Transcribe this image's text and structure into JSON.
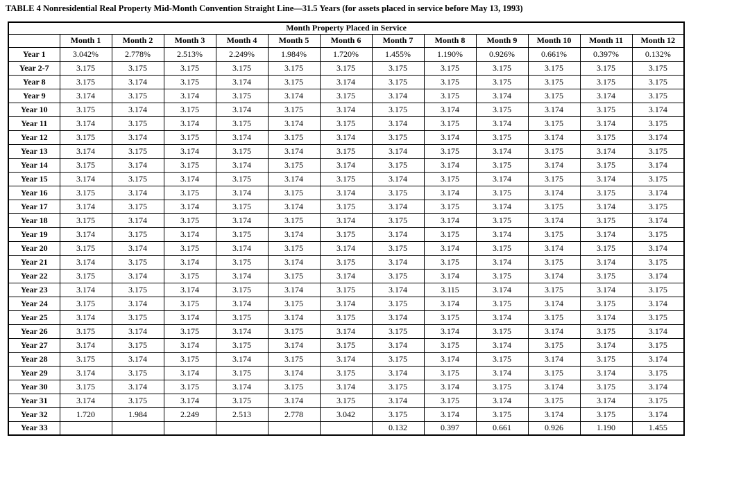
{
  "title": "TABLE 4 Nonresidential Real Property Mid-Month Convention Straight Line—31.5 Years (for assets placed in service before May 13, 1993)",
  "table": {
    "spanning_header": "Month Property Placed in Service",
    "column_headers": [
      "",
      "Month 1",
      "Month 2",
      "Month 3",
      "Month 4",
      "Month 5",
      "Month 6",
      "Month 7",
      "Month 8",
      "Month 9",
      "Month 10",
      "Month 11",
      "Month 12"
    ],
    "rows": [
      {
        "label": "Year 1",
        "values": [
          "3.042%",
          "2.778%",
          "2.513%",
          "2.249%",
          "1.984%",
          "1.720%",
          "1.455%",
          "1.190%",
          "0.926%",
          "0.661%",
          "0.397%",
          "0.132%"
        ]
      },
      {
        "label": "Year 2-7",
        "values": [
          "3.175",
          "3.175",
          "3.175",
          "3.175",
          "3.175",
          "3.175",
          "3.175",
          "3.175",
          "3.175",
          "3.175",
          "3.175",
          "3.175"
        ]
      },
      {
        "label": "Year 8",
        "values": [
          "3.175",
          "3.174",
          "3.175",
          "3.174",
          "3.175",
          "3.174",
          "3.175",
          "3.175",
          "3.175",
          "3.175",
          "3.175",
          "3.175"
        ]
      },
      {
        "label": "Year 9",
        "values": [
          "3.174",
          "3.175",
          "3.174",
          "3.175",
          "3.174",
          "3.175",
          "3.174",
          "3.175",
          "3.174",
          "3.175",
          "3.174",
          "3.175"
        ]
      },
      {
        "label": "Year 10",
        "values": [
          "3.175",
          "3.174",
          "3.175",
          "3.174",
          "3.175",
          "3.174",
          "3.175",
          "3.174",
          "3.175",
          "3.174",
          "3.175",
          "3.174"
        ]
      },
      {
        "label": "Year 11",
        "values": [
          "3.174",
          "3.175",
          "3.174",
          "3.175",
          "3.174",
          "3.175",
          "3.174",
          "3.175",
          "3.174",
          "3.175",
          "3.174",
          "3.175"
        ]
      },
      {
        "label": "Year 12",
        "values": [
          "3.175",
          "3.174",
          "3.175",
          "3.174",
          "3.175",
          "3.174",
          "3.175",
          "3.174",
          "3.175",
          "3.174",
          "3.175",
          "3.174"
        ]
      },
      {
        "label": "Year 13",
        "values": [
          "3.174",
          "3.175",
          "3.174",
          "3.175",
          "3.174",
          "3.175",
          "3.174",
          "3.175",
          "3.174",
          "3.175",
          "3.174",
          "3.175"
        ]
      },
      {
        "label": "Year 14",
        "values": [
          "3.175",
          "3.174",
          "3.175",
          "3.174",
          "3.175",
          "3.174",
          "3.175",
          "3.174",
          "3.175",
          "3.174",
          "3.175",
          "3.174"
        ]
      },
      {
        "label": "Year 15",
        "values": [
          "3.174",
          "3.175",
          "3.174",
          "3.175",
          "3.174",
          "3.175",
          "3.174",
          "3.175",
          "3.174",
          "3.175",
          "3.174",
          "3.175"
        ]
      },
      {
        "label": "Year 16",
        "values": [
          "3.175",
          "3.174",
          "3.175",
          "3.174",
          "3.175",
          "3.174",
          "3.175",
          "3.174",
          "3.175",
          "3.174",
          "3.175",
          "3.174"
        ]
      },
      {
        "label": "Year 17",
        "values": [
          "3.174",
          "3.175",
          "3.174",
          "3.175",
          "3.174",
          "3.175",
          "3.174",
          "3.175",
          "3.174",
          "3.175",
          "3.174",
          "3.175"
        ]
      },
      {
        "label": "Year 18",
        "values": [
          "3.175",
          "3.174",
          "3.175",
          "3.174",
          "3.175",
          "3.174",
          "3.175",
          "3.174",
          "3.175",
          "3.174",
          "3.175",
          "3.174"
        ]
      },
      {
        "label": "Year 19",
        "values": [
          "3.174",
          "3.175",
          "3.174",
          "3.175",
          "3.174",
          "3.175",
          "3.174",
          "3.175",
          "3.174",
          "3.175",
          "3.174",
          "3.175"
        ]
      },
      {
        "label": "Year 20",
        "values": [
          "3.175",
          "3.174",
          "3.175",
          "3.174",
          "3.175",
          "3.174",
          "3.175",
          "3.174",
          "3.175",
          "3.174",
          "3.175",
          "3.174"
        ]
      },
      {
        "label": "Year 21",
        "values": [
          "3.174",
          "3.175",
          "3.174",
          "3.175",
          "3.174",
          "3.175",
          "3.174",
          "3.175",
          "3.174",
          "3.175",
          "3.174",
          "3.175"
        ]
      },
      {
        "label": "Year 22",
        "values": [
          "3.175",
          "3.174",
          "3.175",
          "3.174",
          "3.175",
          "3.174",
          "3.175",
          "3.174",
          "3.175",
          "3.174",
          "3.175",
          "3.174"
        ]
      },
      {
        "label": "Year 23",
        "values": [
          "3.174",
          "3.175",
          "3.174",
          "3.175",
          "3.174",
          "3.175",
          "3.174",
          "3.115",
          "3.174",
          "3.175",
          "3.174",
          "3.175"
        ]
      },
      {
        "label": "Year 24",
        "values": [
          "3.175",
          "3.174",
          "3.175",
          "3.174",
          "3.175",
          "3.174",
          "3.175",
          "3.174",
          "3.175",
          "3.174",
          "3.175",
          "3.174"
        ]
      },
      {
        "label": "Year 25",
        "values": [
          "3.174",
          "3.175",
          "3.174",
          "3.175",
          "3.174",
          "3.175",
          "3.174",
          "3.175",
          "3.174",
          "3.175",
          "3.174",
          "3.175"
        ]
      },
      {
        "label": "Year 26",
        "values": [
          "3.175",
          "3.174",
          "3.175",
          "3.174",
          "3.175",
          "3.174",
          "3.175",
          "3.174",
          "3.175",
          "3.174",
          "3.175",
          "3.174"
        ]
      },
      {
        "label": "Year 27",
        "values": [
          "3.174",
          "3.175",
          "3.174",
          "3.175",
          "3.174",
          "3.175",
          "3.174",
          "3.175",
          "3.174",
          "3.175",
          "3.174",
          "3.175"
        ]
      },
      {
        "label": "Year 28",
        "values": [
          "3.175",
          "3.174",
          "3.175",
          "3.174",
          "3.175",
          "3.174",
          "3.175",
          "3.174",
          "3.175",
          "3.174",
          "3.175",
          "3.174"
        ]
      },
      {
        "label": "Year 29",
        "values": [
          "3.174",
          "3.175",
          "3.174",
          "3.175",
          "3.174",
          "3.175",
          "3.174",
          "3.175",
          "3.174",
          "3.175",
          "3.174",
          "3.175"
        ]
      },
      {
        "label": "Year 30",
        "values": [
          "3.175",
          "3.174",
          "3.175",
          "3.174",
          "3.175",
          "3.174",
          "3.175",
          "3.174",
          "3.175",
          "3.174",
          "3.175",
          "3.174"
        ]
      },
      {
        "label": "Year 31",
        "values": [
          "3.174",
          "3.175",
          "3.174",
          "3.175",
          "3.174",
          "3.175",
          "3.174",
          "3.175",
          "3.174",
          "3.175",
          "3.174",
          "3.175"
        ]
      },
      {
        "label": "Year 32",
        "values": [
          "1.720",
          "1.984",
          "2.249",
          "2.513",
          "2.778",
          "3.042",
          "3.175",
          "3.174",
          "3.175",
          "3.174",
          "3.175",
          "3.174"
        ]
      },
      {
        "label": "Year 33",
        "values": [
          "",
          "",
          "",
          "",
          "",
          "",
          "0.132",
          "0.397",
          "0.661",
          "0.926",
          "1.190",
          "1.455"
        ]
      }
    ]
  }
}
